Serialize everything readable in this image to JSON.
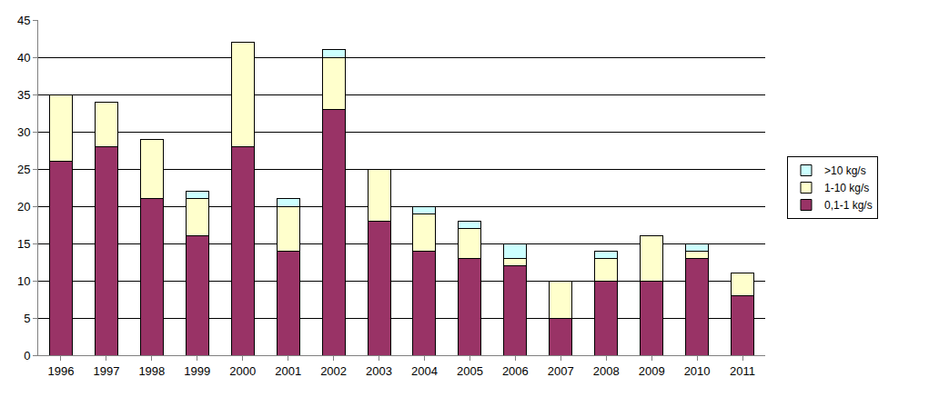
{
  "chart_data": {
    "type": "bar",
    "categories": [
      "1996",
      "1997",
      "1998",
      "1999",
      "2000",
      "2001",
      "2002",
      "2003",
      "2004",
      "2005",
      "2006",
      "2007",
      "2008",
      "2009",
      "2010",
      "2011"
    ],
    "series": [
      {
        "name": "0,1-1 kg/s",
        "color": "#993366",
        "values": [
          26,
          28,
          21,
          16,
          28,
          14,
          33,
          18,
          14,
          13,
          12,
          5,
          10,
          10,
          13,
          8
        ]
      },
      {
        "name": "1-10 kg/s",
        "color": "#ffffcc",
        "values": [
          9,
          6,
          8,
          5,
          14,
          6,
          7,
          7,
          5,
          4,
          1,
          5,
          3,
          6,
          1,
          3
        ]
      },
      {
        "name": ">10 kg/s",
        "color": "#ccffff",
        "values": [
          0,
          0,
          0,
          1,
          0,
          1,
          1,
          0,
          1,
          1,
          2,
          0,
          1,
          0,
          1,
          0
        ]
      }
    ],
    "ylim": [
      0,
      45
    ],
    "yticks": [
      0,
      5,
      10,
      15,
      20,
      25,
      30,
      35,
      40,
      45
    ],
    "stacked": true,
    "grid": true,
    "legend": "right"
  }
}
